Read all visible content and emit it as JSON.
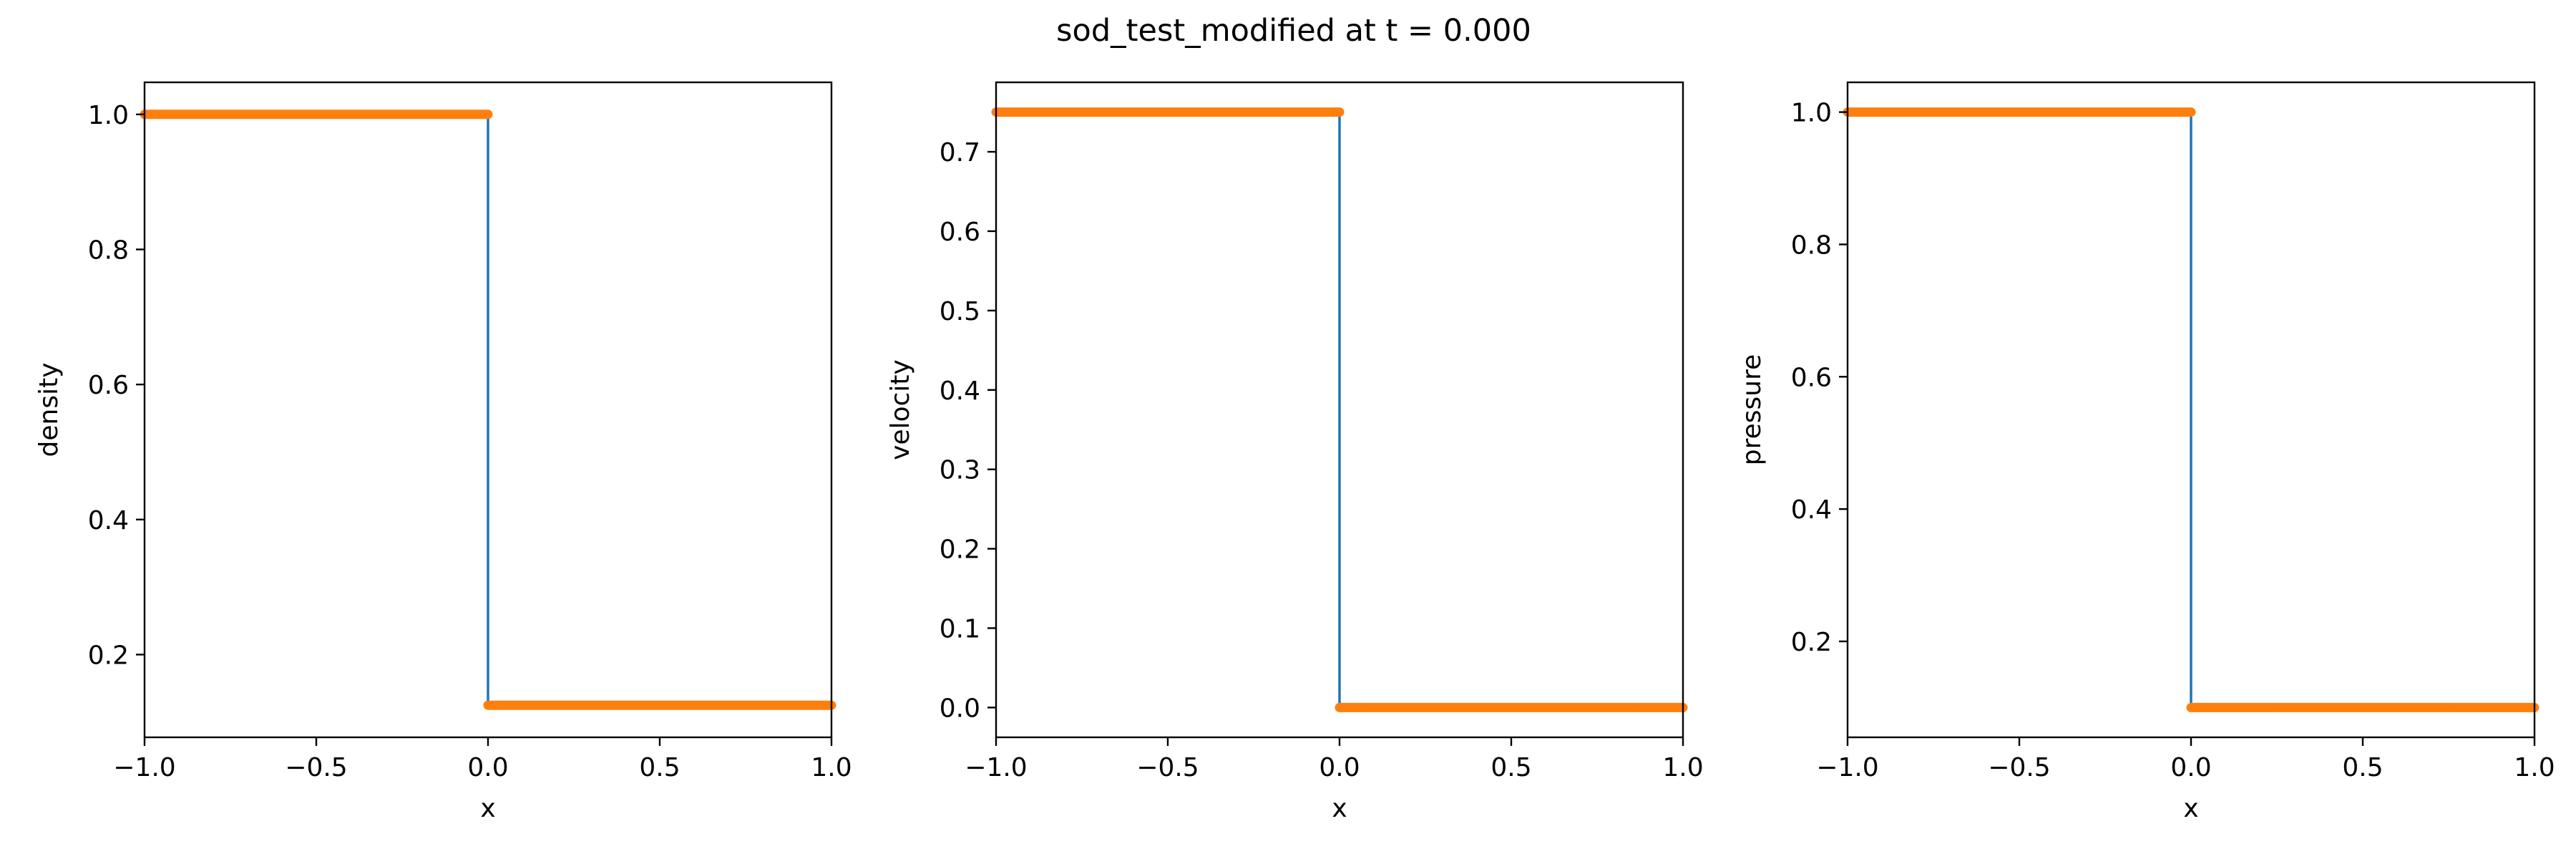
{
  "figure": {
    "title": "sod_test_modified at t = 0.000"
  },
  "colors": {
    "reference_line": "#1f77b4",
    "sim_points": "#ff7f0e",
    "axes": "#000000",
    "background": "#ffffff"
  },
  "chart_data": [
    {
      "type": "line",
      "xlabel": "x",
      "ylabel": "density",
      "xlim": [
        -1.0,
        1.0
      ],
      "ylim": [
        0.0775,
        1.0475
      ],
      "xticks": [
        "−1.0",
        "−0.5",
        "0.0",
        "0.5",
        "1.0"
      ],
      "xtick_values": [
        -1.0,
        -0.5,
        0.0,
        0.5,
        1.0
      ],
      "yticks": [
        "0.2",
        "0.4",
        "0.6",
        "0.8",
        "1.0"
      ],
      "ytick_values": [
        0.2,
        0.4,
        0.6,
        0.8,
        1.0
      ],
      "grid": false,
      "series": [
        {
          "style": "line",
          "x": [
            -1.0,
            0.0,
            0.0,
            1.0
          ],
          "y": [
            1.0,
            1.0,
            0.125,
            0.125
          ]
        },
        {
          "style": "points",
          "segments": [
            {
              "x": [
                -1.0,
                0.0
              ],
              "y": [
                1.0,
                1.0
              ]
            },
            {
              "x": [
                0.0,
                1.0
              ],
              "y": [
                0.125,
                0.125
              ]
            }
          ]
        }
      ]
    },
    {
      "type": "line",
      "xlabel": "x",
      "ylabel": "velocity",
      "xlim": [
        -1.0,
        1.0
      ],
      "ylim": [
        -0.0375,
        0.7875
      ],
      "xticks": [
        "−1.0",
        "−0.5",
        "0.0",
        "0.5",
        "1.0"
      ],
      "xtick_values": [
        -1.0,
        -0.5,
        0.0,
        0.5,
        1.0
      ],
      "yticks": [
        "0.0",
        "0.1",
        "0.2",
        "0.3",
        "0.4",
        "0.5",
        "0.6",
        "0.7"
      ],
      "ytick_values": [
        0.0,
        0.1,
        0.2,
        0.3,
        0.4,
        0.5,
        0.6,
        0.7
      ],
      "grid": false,
      "series": [
        {
          "style": "line",
          "x": [
            -1.0,
            0.0,
            0.0,
            1.0
          ],
          "y": [
            0.75,
            0.75,
            0.0,
            0.0
          ]
        },
        {
          "style": "points",
          "segments": [
            {
              "x": [
                -1.0,
                0.0
              ],
              "y": [
                0.75,
                0.75
              ]
            },
            {
              "x": [
                0.0,
                1.0
              ],
              "y": [
                0.0,
                0.0
              ]
            }
          ]
        }
      ]
    },
    {
      "type": "line",
      "xlabel": "x",
      "ylabel": "pressure",
      "xlim": [
        -1.0,
        1.0
      ],
      "ylim": [
        0.055,
        1.045
      ],
      "xticks": [
        "−1.0",
        "−0.5",
        "0.0",
        "0.5",
        "1.0"
      ],
      "xtick_values": [
        -1.0,
        -0.5,
        0.0,
        0.5,
        1.0
      ],
      "yticks": [
        "0.2",
        "0.4",
        "0.6",
        "0.8",
        "1.0"
      ],
      "ytick_values": [
        0.2,
        0.4,
        0.6,
        0.8,
        1.0
      ],
      "grid": false,
      "series": [
        {
          "style": "line",
          "x": [
            -1.0,
            0.0,
            0.0,
            1.0
          ],
          "y": [
            1.0,
            1.0,
            0.1,
            0.1
          ]
        },
        {
          "style": "points",
          "segments": [
            {
              "x": [
                -1.0,
                0.0
              ],
              "y": [
                1.0,
                1.0
              ]
            },
            {
              "x": [
                0.0,
                1.0
              ],
              "y": [
                0.1,
                0.1
              ]
            }
          ]
        }
      ]
    }
  ]
}
